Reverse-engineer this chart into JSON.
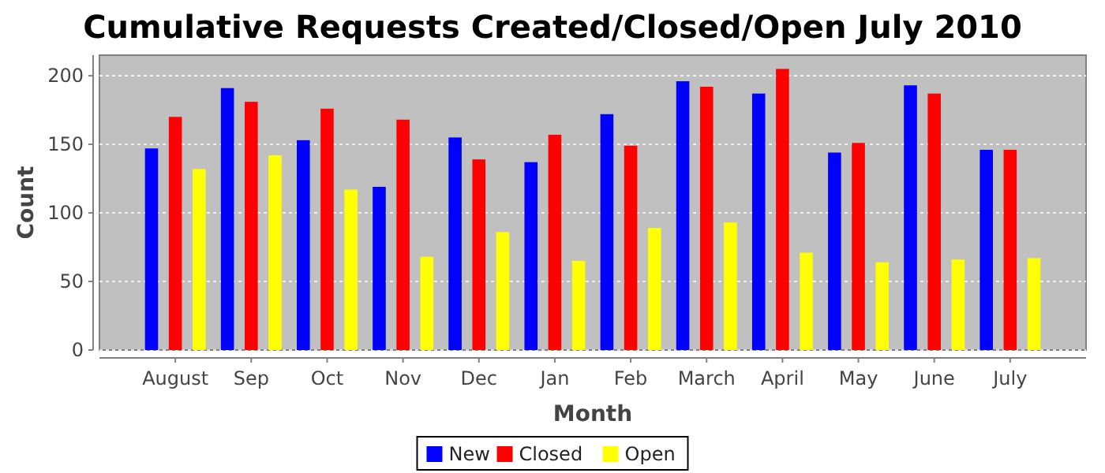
{
  "chart_data": {
    "type": "bar",
    "title": "Cumulative Requests Created/Closed/Open July 2010",
    "xlabel": "Month",
    "ylabel": "Count",
    "categories": [
      "August",
      "Sep",
      "Oct",
      "Nov",
      "Dec",
      "Jan",
      "Feb",
      "March",
      "April",
      "May",
      "June",
      "July"
    ],
    "series": [
      {
        "name": "New",
        "color": "#0000ff",
        "values": [
          147,
          191,
          153,
          119,
          155,
          137,
          172,
          196,
          187,
          144,
          193,
          146
        ]
      },
      {
        "name": "Closed",
        "color": "#ff0000",
        "values": [
          170,
          181,
          176,
          168,
          139,
          157,
          149,
          192,
          205,
          151,
          187,
          146
        ]
      },
      {
        "name": "Open",
        "color": "#ffff00",
        "values": [
          132,
          142,
          117,
          68,
          86,
          65,
          89,
          93,
          71,
          64,
          66,
          67
        ]
      }
    ],
    "ylim": [
      0,
      215
    ],
    "yticks": [
      0,
      50,
      100,
      150,
      200
    ],
    "grid": "y",
    "legend": "bottom"
  }
}
